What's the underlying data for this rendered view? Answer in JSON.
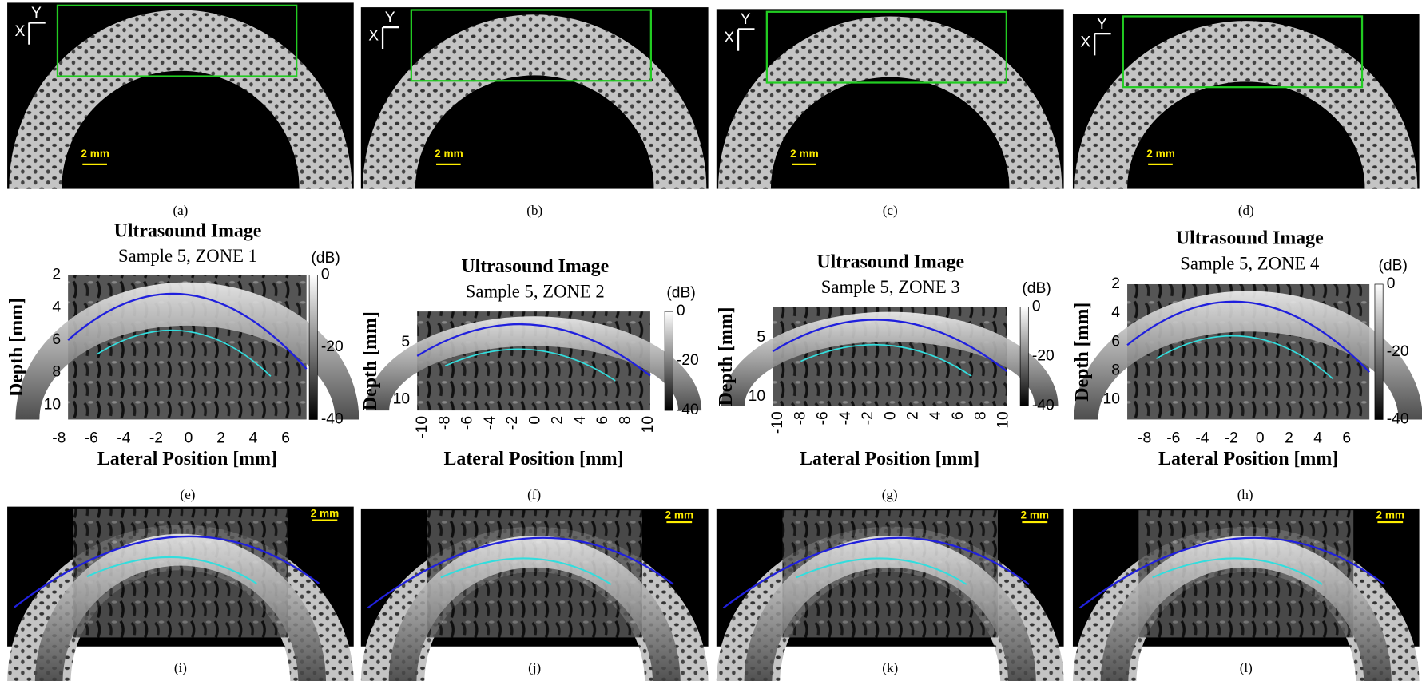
{
  "ct_panels": [
    {
      "caption": "(a)",
      "axis_x": "X",
      "axis_y": "Y",
      "scale_bar": "2 mm"
    },
    {
      "caption": "(b)",
      "axis_x": "X",
      "axis_y": "Y",
      "scale_bar": "2 mm"
    },
    {
      "caption": "(c)",
      "axis_x": "X",
      "axis_y": "Y",
      "scale_bar": "2 mm"
    },
    {
      "caption": "(d)",
      "axis_x": "X",
      "axis_y": "Y",
      "scale_bar": "2 mm"
    }
  ],
  "ultrasound_panels": [
    {
      "caption": "(e)",
      "title": "Ultrasound Image",
      "subtitle": "Sample 5, ZONE 1",
      "colorbar_unit": "(dB)",
      "colorbar_ticks": [
        0,
        -20,
        -40
      ],
      "y_label": "Depth [mm]",
      "y_ticks": [
        2,
        4,
        6,
        8,
        10
      ],
      "x_label": "Lateral Position [mm]",
      "x_ticks": [
        -8,
        -6,
        -4,
        -2,
        0,
        2,
        4,
        6
      ]
    },
    {
      "caption": "(f)",
      "title": "Ultrasound Image",
      "subtitle": "Sample 5, ZONE 2",
      "colorbar_unit": "(dB)",
      "colorbar_ticks": [
        0,
        -20,
        -40
      ],
      "y_label": "Depth [mm]",
      "y_ticks": [
        5,
        10
      ],
      "x_label": "Lateral Position [mm]",
      "x_ticks": [
        -10,
        -8,
        -6,
        -4,
        -2,
        0,
        2,
        4,
        6,
        8,
        10
      ]
    },
    {
      "caption": "(g)",
      "title": "Ultrasound Image",
      "subtitle": "Sample 5, ZONE 3",
      "colorbar_unit": "(dB)",
      "colorbar_ticks": [
        0,
        -20,
        -40
      ],
      "y_label": "Depth [mm]",
      "y_ticks": [
        5,
        10
      ],
      "x_label": "Lateral Position [mm]",
      "x_ticks": [
        -10,
        -8,
        -6,
        -4,
        -2,
        0,
        2,
        4,
        6,
        8,
        10
      ]
    },
    {
      "caption": "(h)",
      "title": "Ultrasound Image",
      "subtitle": "Sample 5, ZONE 4",
      "colorbar_unit": "(dB)",
      "colorbar_ticks": [
        0,
        -20,
        -40
      ],
      "y_label": "Depth [mm]",
      "y_ticks": [
        2,
        4,
        6,
        8,
        10
      ],
      "x_label": "Lateral Position [mm]",
      "x_ticks": [
        -8,
        -6,
        -4,
        -2,
        0,
        2,
        4,
        6
      ]
    }
  ],
  "overlay_panels": [
    {
      "caption": "(i)",
      "scale_bar": "2 mm"
    },
    {
      "caption": "(j)",
      "scale_bar": "2 mm"
    },
    {
      "caption": "(k)",
      "scale_bar": "2 mm"
    },
    {
      "caption": "(l)",
      "scale_bar": "2 mm"
    }
  ]
}
